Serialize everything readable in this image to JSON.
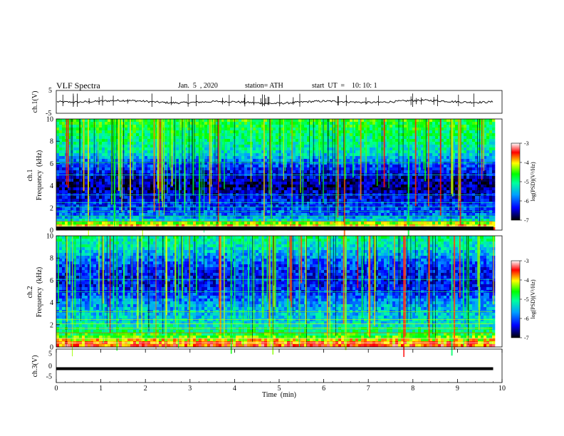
{
  "header": {
    "title": "VLF  Spectra",
    "date": "Jan.  5  , 2020",
    "station": "station= ATH",
    "start": "start  UT  =    10: 10: 1"
  },
  "chart_data": [
    {
      "type": "line",
      "panel": "ch1-waveform",
      "ylabel": "ch.1(V)",
      "ylim": [
        -5,
        5
      ],
      "yticks": [
        "5",
        "-5"
      ],
      "xlim": [
        0,
        10
      ],
      "waveform_color": "#000000",
      "approx_level_v": 0
    },
    {
      "type": "heatmap",
      "panel": "ch1-spectrogram",
      "ylabel": "ch.1\nFrequency  (kHz)",
      "ylim": [
        0,
        10
      ],
      "yticks": [
        "0",
        "2",
        "4",
        "6",
        "8",
        "10"
      ],
      "xlim": [
        0,
        10
      ],
      "data_end_min": 9.8,
      "log_psd_profile": [
        {
          "f_khz": 0.2,
          "log_psd": -3.8
        },
        {
          "f_khz": 0.6,
          "log_psd": -4.2
        },
        {
          "f_khz": 1.0,
          "log_psd": -5.6
        },
        {
          "f_khz": 1.5,
          "log_psd": -6.0
        },
        {
          "f_khz": 2.0,
          "log_psd": -6.1
        },
        {
          "f_khz": 3.0,
          "log_psd": -6.4
        },
        {
          "f_khz": 4.0,
          "log_psd": -6.7
        },
        {
          "f_khz": 5.0,
          "log_psd": -6.4
        },
        {
          "f_khz": 6.0,
          "log_psd": -6.0
        },
        {
          "f_khz": 7.0,
          "log_psd": -5.3
        },
        {
          "f_khz": 8.0,
          "log_psd": -5.0
        },
        {
          "f_khz": 9.0,
          "log_psd": -4.8
        },
        {
          "f_khz": 10.0,
          "log_psd": -4.6
        }
      ],
      "colorbar": {
        "label": "log(PSD)(V²/Hz)",
        "range": [
          -7,
          -3
        ],
        "ticks": [
          "-3",
          "-4",
          "-5",
          "-6",
          "-7"
        ]
      }
    },
    {
      "type": "heatmap",
      "panel": "ch2-spectrogram",
      "ylabel": "ch.2\nFrequency  (kHz)",
      "ylim": [
        0,
        10
      ],
      "yticks": [
        "0",
        "2",
        "4",
        "6",
        "8",
        "10"
      ],
      "xlim": [
        0,
        10
      ],
      "data_end_min": 9.8,
      "log_psd_profile": [
        {
          "f_khz": 0.2,
          "log_psd": -3.6
        },
        {
          "f_khz": 0.6,
          "log_psd": -4.0
        },
        {
          "f_khz": 1.0,
          "log_psd": -4.6
        },
        {
          "f_khz": 1.5,
          "log_psd": -5.0
        },
        {
          "f_khz": 2.0,
          "log_psd": -5.3
        },
        {
          "f_khz": 3.0,
          "log_psd": -5.5
        },
        {
          "f_khz": 4.0,
          "log_psd": -5.7
        },
        {
          "f_khz": 5.0,
          "log_psd": -6.2
        },
        {
          "f_khz": 6.0,
          "log_psd": -6.3
        },
        {
          "f_khz": 7.0,
          "log_psd": -6.2
        },
        {
          "f_khz": 8.0,
          "log_psd": -5.8
        },
        {
          "f_khz": 9.0,
          "log_psd": -5.3
        },
        {
          "f_khz": 10.0,
          "log_psd": -5.0
        }
      ],
      "colorbar": {
        "label": "log(PSD)(V²/Hz)",
        "range": [
          -7,
          -3
        ],
        "ticks": [
          "-3",
          "-4",
          "-5",
          "-6",
          "-7"
        ]
      }
    },
    {
      "type": "line",
      "panel": "ch3-waveform",
      "ylabel": "ch.3(V)",
      "ylim": [
        -5,
        5
      ],
      "yticks": [
        "5",
        "0",
        "-5"
      ],
      "xlim": [
        0,
        10
      ],
      "xlabel": "Time  (min)",
      "xticks": [
        "0",
        "1",
        "2",
        "3",
        "4",
        "5",
        "6",
        "7",
        "8",
        "9",
        "10"
      ],
      "approx_level_v": -1.6
    }
  ],
  "colormap": [
    "#000000",
    "#0000ff",
    "#00a0ff",
    "#00ffa0",
    "#00ff00",
    "#ffff00",
    "#ff0000",
    "#ffffff"
  ]
}
